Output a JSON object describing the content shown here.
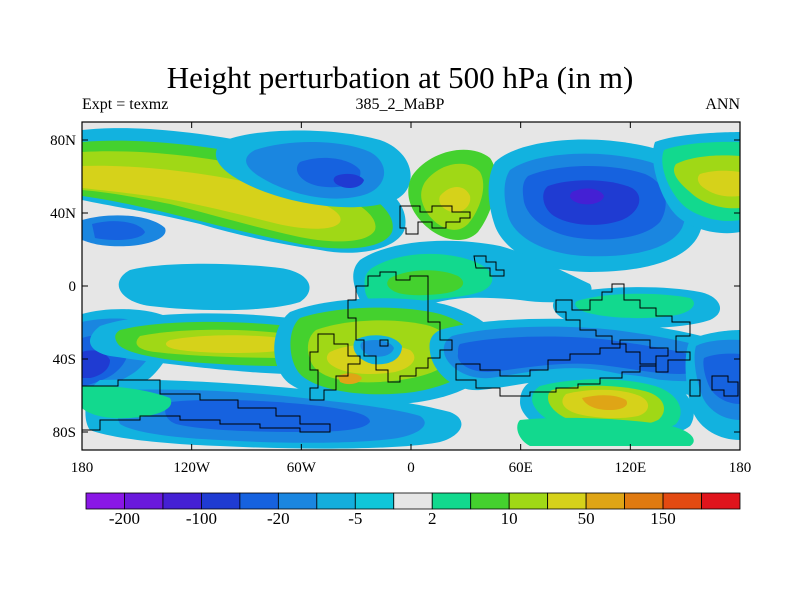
{
  "title": "Height perturbation at 500 hPa (in m)",
  "subtitle_left": "Expt = texmz",
  "subtitle_center": "385_2_MaBP",
  "subtitle_right": "ANN",
  "axes": {
    "lat_ticks": [
      "80N",
      "40N",
      "0",
      "40S",
      "80S"
    ],
    "lon_ticks": [
      "180",
      "120W",
      "60W",
      "0",
      "60E",
      "120E",
      "180"
    ]
  },
  "colorbar": {
    "colors": [
      "#8a17e6",
      "#6a19dc",
      "#4420d4",
      "#1f3bd2",
      "#1662df",
      "#1a86e0",
      "#14aedc",
      "#10c6d9",
      "#e6e6e6",
      "#12d98e",
      "#44d12e",
      "#a0d816",
      "#d6d21a",
      "#dfa516",
      "#e07a10",
      "#e34a12",
      "#e0141c"
    ],
    "labels": [
      "-200",
      "-100",
      "-20",
      "-5",
      "2",
      "10",
      "50",
      "150"
    ]
  },
  "palette": {
    "background": "#e6e6e6",
    "cyan": "#12b2df",
    "light_blue": "#1a86e0",
    "blue": "#1662df",
    "dark_blue": "#1f3bd2",
    "deep_blue": "#4420d4",
    "green": "#12d98e",
    "lime": "#44d12e",
    "yellow_green": "#a0d816",
    "yellow": "#d6d21a",
    "orange": "#dfa516"
  }
}
